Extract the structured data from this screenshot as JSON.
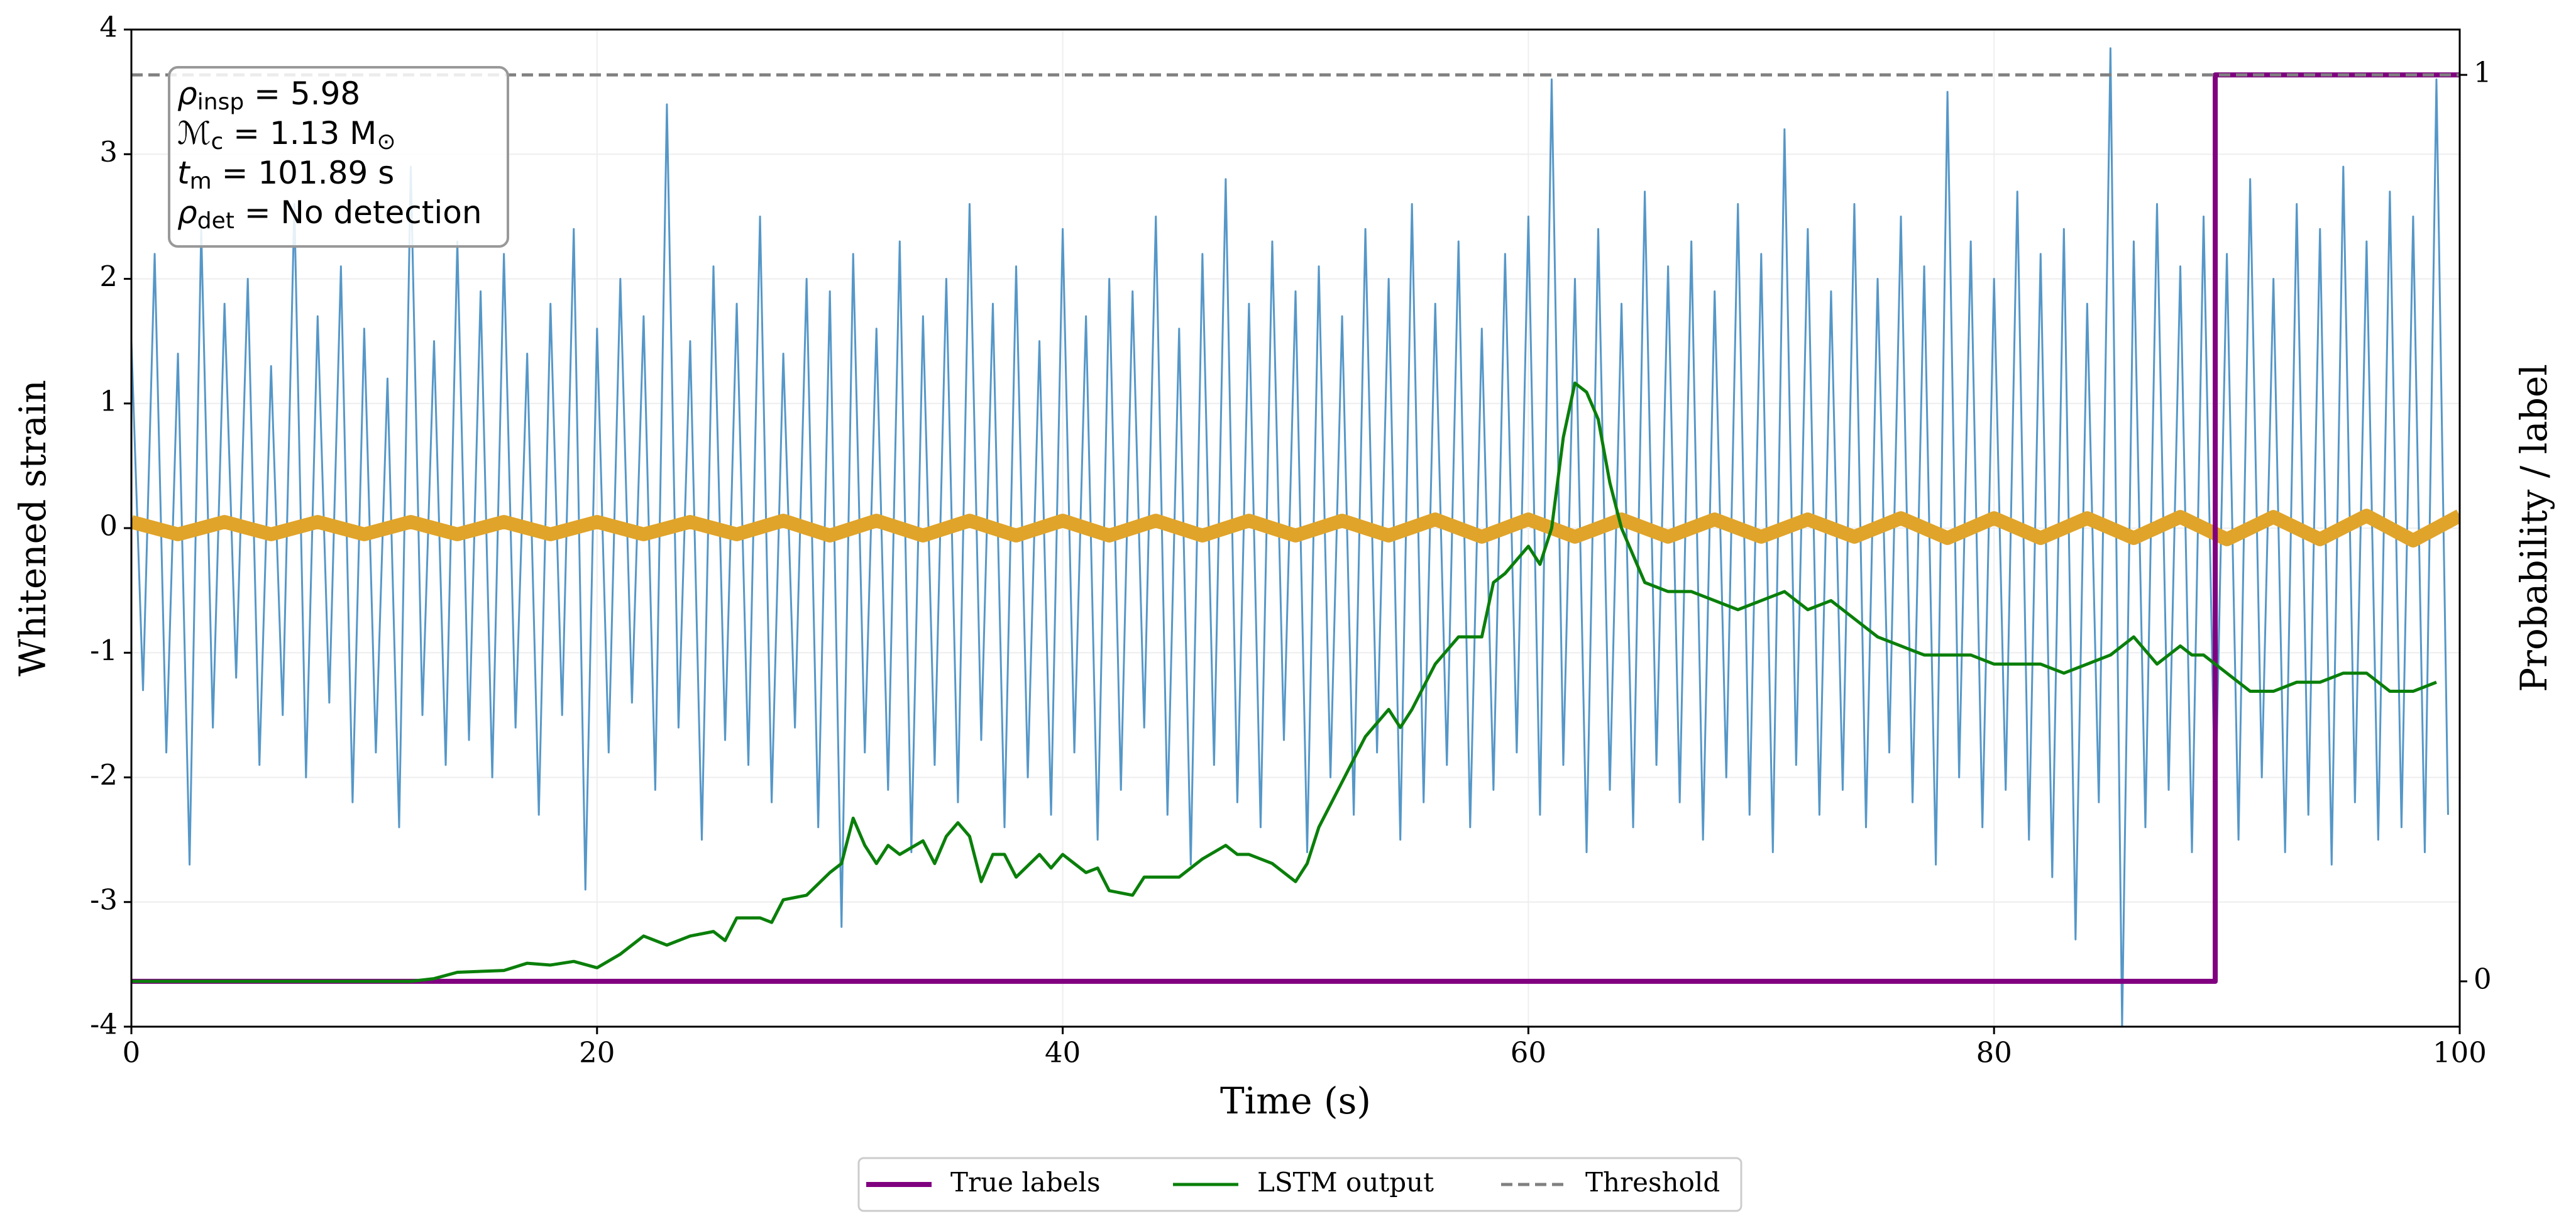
{
  "chart_data": {
    "type": "line",
    "xlabel": "Time (s)",
    "ylabel": "Whitened strain",
    "y2label": "Probability / label",
    "xlim": [
      0,
      100
    ],
    "xticks": [
      0,
      20,
      40,
      60,
      80,
      100
    ],
    "ylim": [
      -4,
      4
    ],
    "yticks": [
      -4,
      -3,
      -2,
      -1,
      0,
      1,
      2,
      3,
      4
    ],
    "y2lim": [
      -0.05,
      1.05
    ],
    "y2ticks": [
      0,
      1
    ],
    "grid": true,
    "legend": "bottom",
    "annotation": [
      [
        {
          "text": "ρ"
        },
        {
          "sub": "insp"
        },
        {
          "text": " = 5.98"
        }
      ],
      [
        {
          "text": "ℳ"
        },
        {
          "sub": "c"
        },
        {
          "text": " = 1.13 M"
        },
        {
          "sub": "⊙"
        }
      ],
      [
        {
          "text": "t"
        },
        {
          "sub": "m"
        },
        {
          "text": " = 101.89 s"
        }
      ],
      [
        {
          "text": "ρ"
        },
        {
          "sub": "det"
        },
        {
          "text": " = No detection"
        }
      ]
    ],
    "series": [
      {
        "color": "#5597c8",
        "width": 3,
        "x": [
          0,
          0.5,
          1,
          1.5,
          2,
          2.5,
          3,
          3.5,
          4,
          4.5,
          5,
          5.5,
          6,
          6.5,
          7,
          7.5,
          8,
          8.5,
          9,
          9.5,
          10,
          10.5,
          11,
          11.5,
          12,
          12.5,
          13,
          13.5,
          14,
          14.5,
          15,
          15.5,
          16,
          16.5,
          17,
          17.5,
          18,
          18.5,
          19,
          19.5,
          20,
          20.5,
          21,
          21.5,
          22,
          22.5,
          23,
          23.5,
          24,
          24.5,
          25,
          25.5,
          26,
          26.5,
          27,
          27.5,
          28,
          28.5,
          29,
          29.5,
          30,
          30.5,
          31,
          31.5,
          32,
          32.5,
          33,
          33.5,
          34,
          34.5,
          35,
          35.5,
          36,
          36.5,
          37,
          37.5,
          38,
          38.5,
          39,
          39.5,
          40,
          40.5,
          41,
          41.5,
          42,
          42.5,
          43,
          43.5,
          44,
          44.5,
          45,
          45.5,
          46,
          46.5,
          47,
          47.5,
          48,
          48.5,
          49,
          49.5,
          50,
          50.5,
          51,
          51.5,
          52,
          52.5,
          53,
          53.5,
          54,
          54.5,
          55,
          55.5,
          56,
          56.5,
          57,
          57.5,
          58,
          58.5,
          59,
          59.5,
          60,
          60.5,
          61,
          61.5,
          62,
          62.5,
          63,
          63.5,
          64,
          64.5,
          65,
          65.5,
          66,
          66.5,
          67,
          67.5,
          68,
          68.5,
          69,
          69.5,
          70,
          70.5,
          71,
          71.5,
          72,
          72.5,
          73,
          73.5,
          74,
          74.5,
          75,
          75.5,
          76,
          76.5,
          77,
          77.5,
          78,
          78.5,
          79,
          79.5,
          80,
          80.5,
          81,
          81.5,
          82,
          82.5,
          83,
          83.5,
          84,
          84.5,
          85,
          85.5,
          86,
          86.5,
          87,
          87.5,
          88,
          88.5,
          89,
          89.5,
          90,
          90.5,
          91,
          91.5,
          92,
          92.5,
          93,
          93.5,
          94,
          94.5,
          95,
          95.5,
          96,
          96.5,
          97,
          97.5,
          98,
          98.5,
          99,
          99.5
        ],
        "values": [
          1.5,
          -1.3,
          2.2,
          -1.8,
          1.4,
          -2.7,
          2.4,
          -1.6,
          1.8,
          -1.2,
          2.0,
          -1.9,
          1.3,
          -1.5,
          2.6,
          -2.0,
          1.7,
          -1.4,
          2.1,
          -2.2,
          1.6,
          -1.8,
          1.2,
          -2.4,
          2.9,
          -1.5,
          1.5,
          -1.9,
          2.3,
          -1.7,
          1.9,
          -2.0,
          2.2,
          -1.6,
          1.4,
          -2.3,
          1.8,
          -1.5,
          2.4,
          -2.9,
          1.6,
          -1.8,
          2.0,
          -1.4,
          1.7,
          -2.1,
          3.4,
          -1.6,
          1.5,
          -2.5,
          2.1,
          -1.7,
          1.8,
          -1.9,
          2.5,
          -2.2,
          1.4,
          -1.6,
          2.0,
          -2.4,
          1.9,
          -3.2,
          2.2,
          -1.8,
          1.6,
          -2.1,
          2.3,
          -2.6,
          1.7,
          -1.9,
          2.0,
          -2.2,
          2.6,
          -1.7,
          1.8,
          -2.4,
          2.1,
          -2.0,
          1.5,
          -2.3,
          2.4,
          -1.8,
          1.7,
          -2.5,
          2.0,
          -2.1,
          1.9,
          -1.6,
          2.5,
          -2.3,
          1.6,
          -2.7,
          2.2,
          -1.9,
          2.8,
          -2.2,
          1.8,
          -2.4,
          2.3,
          -1.7,
          1.9,
          -2.6,
          2.1,
          -2.0,
          1.7,
          -2.3,
          2.4,
          -1.8,
          2.0,
          -2.5,
          2.6,
          -2.2,
          1.8,
          -1.9,
          2.3,
          -2.4,
          1.6,
          -2.1,
          2.2,
          -1.8,
          2.5,
          -2.3,
          3.6,
          -1.9,
          2.0,
          -2.6,
          2.4,
          -2.1,
          1.8,
          -2.4,
          2.7,
          -1.9,
          2.1,
          -2.2,
          2.3,
          -2.5,
          1.9,
          -2.0,
          2.6,
          -2.3,
          2.2,
          -2.6,
          3.2,
          -1.9,
          2.4,
          -2.3,
          1.9,
          -2.1,
          2.6,
          -2.4,
          2.0,
          -1.8,
          2.5,
          -2.2,
          2.1,
          -2.7,
          3.5,
          -2.0,
          2.3,
          -2.4,
          2.0,
          -2.1,
          2.7,
          -2.5,
          2.2,
          -2.8,
          2.4,
          -3.3,
          1.8,
          -2.2,
          3.85,
          -4.0,
          2.3,
          -2.4,
          2.6,
          -2.1,
          2.1,
          -2.6,
          2.5,
          -2.3,
          2.2,
          -2.5,
          2.8,
          -2.0,
          2.0,
          -2.6,
          2.6,
          -2.3,
          2.4,
          -2.7,
          2.9,
          -2.2,
          2.3,
          -2.5,
          2.7,
          -2.4,
          2.5,
          -2.6,
          3.6,
          -2.3
        ]
      },
      {
        "color": "#e0a42a",
        "width": 22,
        "x": [
          0,
          2,
          4,
          6,
          8,
          10,
          12,
          14,
          16,
          18,
          20,
          22,
          24,
          26,
          28,
          30,
          32,
          34,
          36,
          38,
          40,
          42,
          44,
          46,
          48,
          50,
          52,
          54,
          56,
          58,
          60,
          62,
          64,
          66,
          68,
          70,
          72,
          74,
          76,
          78,
          80,
          82,
          84,
          86,
          88,
          90,
          92,
          94,
          96,
          98,
          100
        ],
        "values": [
          0.05,
          -0.05,
          0.05,
          -0.05,
          0.05,
          -0.05,
          0.05,
          -0.05,
          0.05,
          -0.05,
          0.05,
          -0.05,
          0.05,
          -0.05,
          0.06,
          -0.06,
          0.06,
          -0.06,
          0.06,
          -0.06,
          0.06,
          -0.06,
          0.06,
          -0.06,
          0.06,
          -0.06,
          0.06,
          -0.06,
          0.07,
          -0.07,
          0.07,
          -0.07,
          0.07,
          -0.07,
          0.07,
          -0.07,
          0.07,
          -0.07,
          0.08,
          -0.08,
          0.08,
          -0.08,
          0.08,
          -0.08,
          0.09,
          -0.09,
          0.09,
          -0.09,
          0.1,
          -0.1,
          0.1
        ]
      },
      {
        "name": "True labels",
        "color": "#800080",
        "width": 8,
        "axis": "y2",
        "x": [
          0,
          89.5,
          89.5,
          100
        ],
        "values": [
          0,
          0,
          1,
          1
        ]
      },
      {
        "name": "LSTM output",
        "color": "#0a7f0a",
        "width": 5,
        "axis": "y2",
        "x": [
          0,
          12,
          13,
          14,
          16,
          17,
          18,
          19,
          20,
          21,
          22,
          23,
          24,
          25,
          25.5,
          26,
          27,
          27.5,
          28,
          29,
          30,
          30.5,
          31,
          31.5,
          32,
          32.5,
          33,
          34,
          34.5,
          35,
          35.5,
          36,
          36.5,
          37,
          37.5,
          38,
          39,
          39.5,
          40,
          40.5,
          41,
          41.5,
          42,
          43,
          43.5,
          45,
          46,
          47,
          47.5,
          48,
          49,
          50,
          50.5,
          51,
          52,
          53,
          54,
          54.5,
          55,
          56,
          57,
          58,
          58.5,
          59,
          60,
          60.5,
          61,
          61.5,
          62,
          62.5,
          63,
          63.5,
          64,
          64.5,
          65,
          66,
          67,
          68,
          69,
          70,
          71,
          72,
          73,
          74,
          75,
          76,
          77,
          78,
          79,
          80,
          81,
          82,
          83,
          84,
          85,
          86,
          87,
          88,
          88.5,
          89,
          90,
          91,
          92,
          93,
          94,
          95,
          96,
          97,
          98,
          99
        ],
        "values": [
          0,
          0,
          0.003,
          0.01,
          0.012,
          0.02,
          0.018,
          0.022,
          0.015,
          0.03,
          0.05,
          0.04,
          0.05,
          0.055,
          0.045,
          0.07,
          0.07,
          0.065,
          0.09,
          0.095,
          0.12,
          0.13,
          0.18,
          0.15,
          0.13,
          0.15,
          0.14,
          0.155,
          0.13,
          0.16,
          0.175,
          0.16,
          0.11,
          0.14,
          0.14,
          0.115,
          0.14,
          0.125,
          0.14,
          0.13,
          0.12,
          0.125,
          0.1,
          0.095,
          0.115,
          0.115,
          0.135,
          0.15,
          0.14,
          0.14,
          0.13,
          0.11,
          0.13,
          0.17,
          0.22,
          0.27,
          0.3,
          0.28,
          0.3,
          0.35,
          0.38,
          0.38,
          0.44,
          0.45,
          0.48,
          0.46,
          0.5,
          0.6,
          0.66,
          0.65,
          0.62,
          0.55,
          0.5,
          0.47,
          0.44,
          0.43,
          0.43,
          0.42,
          0.41,
          0.42,
          0.43,
          0.41,
          0.42,
          0.4,
          0.38,
          0.37,
          0.36,
          0.36,
          0.36,
          0.35,
          0.35,
          0.35,
          0.34,
          0.35,
          0.36,
          0.38,
          0.35,
          0.37,
          0.36,
          0.36,
          0.34,
          0.32,
          0.32,
          0.33,
          0.33,
          0.34,
          0.34,
          0.32,
          0.32,
          0.33
        ]
      },
      {
        "name": "Threshold",
        "color": "#808080",
        "width": 5,
        "dash": true,
        "axis": "y2",
        "x": [
          0,
          100
        ],
        "values": [
          1,
          1
        ]
      }
    ]
  }
}
